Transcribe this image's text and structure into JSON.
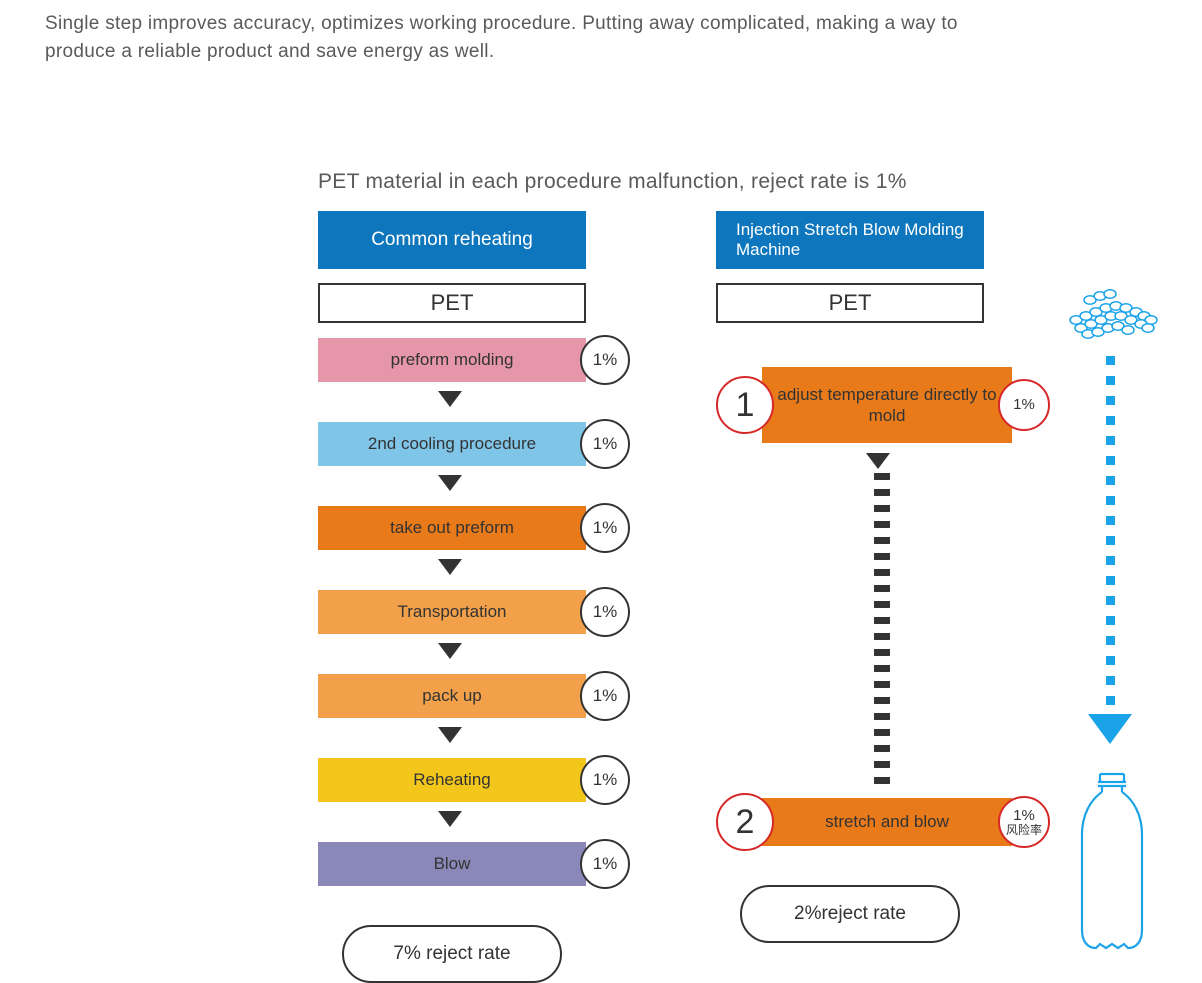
{
  "intro": "Single step improves accuracy, optimizes working procedure. Putting away complicated, making a way to produce a reliable product and save energy as well.",
  "subtitle": "PET material in each procedure malfunction, reject rate is 1%",
  "colors": {
    "header_blue": "#0e76bc",
    "orange_main": "#e87a1a",
    "accent_blue": "#1aa3e8",
    "circle_red": "#d62828",
    "text_gray": "#5a5a5a",
    "black": "#333333"
  },
  "left": {
    "header": "Common reheating",
    "pet": "PET",
    "steps": [
      {
        "label": "preform molding",
        "bg": "#e596a9",
        "pct": "1%"
      },
      {
        "label": "2nd cooling procedure",
        "bg": "#7fc5e8",
        "pct": "1%"
      },
      {
        "label": "take out preform",
        "bg": "#e87a1a",
        "pct": "1%"
      },
      {
        "label": "Transportation",
        "bg": "#f2a14a",
        "pct": "1%"
      },
      {
        "label": "pack up",
        "bg": "#f2a14a",
        "pct": "1%"
      },
      {
        "label": "Reheating",
        "bg": "#f2c61a",
        "pct": "1%"
      },
      {
        "label": "Blow",
        "bg": "#8a88b8",
        "pct": "1%"
      }
    ],
    "result": "7% reject rate"
  },
  "right": {
    "header": "Injection Stretch Blow Molding Machine",
    "pet": "PET",
    "steps": [
      {
        "num": "1",
        "label": "adjust temperature directly to mold",
        "pct": "1%",
        "sub": ""
      },
      {
        "num": "2",
        "label": "stretch and blow",
        "pct": "1%",
        "sub": "风险率"
      }
    ],
    "dash_count": 20,
    "result": "2%reject rate"
  },
  "dotted_arrow_dots": 18
}
